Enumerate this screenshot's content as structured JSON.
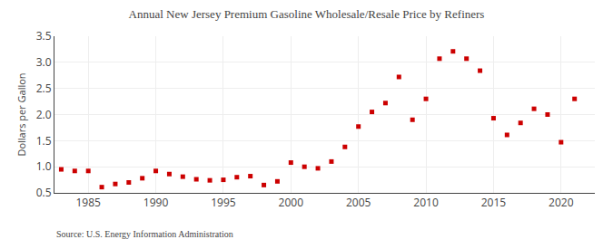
{
  "chart_data": {
    "type": "scatter",
    "title": "Annual New Jersey Premium Gasoline Wholesale/Resale Price by Refiners",
    "ylabel": "Dollars per Gallon",
    "annotations": [
      "Source: U.S. Energy Information Administration"
    ],
    "x": [
      1983,
      1984,
      1985,
      1986,
      1987,
      1988,
      1989,
      1990,
      1991,
      1992,
      1993,
      1994,
      1995,
      1996,
      1997,
      1998,
      1999,
      2000,
      2001,
      2002,
      2003,
      2004,
      2005,
      2006,
      2007,
      2008,
      2009,
      2010,
      2011,
      2012,
      2013,
      2014,
      2015,
      2016,
      2017,
      2018,
      2019,
      2020,
      2021
    ],
    "values": [
      0.95,
      0.92,
      0.92,
      0.61,
      0.67,
      0.7,
      0.78,
      0.92,
      0.86,
      0.81,
      0.76,
      0.74,
      0.75,
      0.8,
      0.82,
      0.65,
      0.72,
      1.08,
      1.0,
      0.97,
      1.1,
      1.38,
      1.77,
      2.05,
      2.22,
      2.72,
      1.9,
      2.3,
      3.07,
      3.21,
      3.07,
      2.84,
      1.93,
      1.61,
      1.84,
      2.11,
      2.0,
      1.47,
      2.3
    ],
    "color": "#cc0000",
    "marker": "square",
    "xlim": [
      1982.5,
      2022.5
    ],
    "ylim": [
      0.5,
      3.5
    ],
    "xticks": [
      1985,
      1990,
      1995,
      2000,
      2005,
      2010,
      2015,
      2020
    ],
    "yticks": [
      0.5,
      {
        "value": 1.0,
        "label": "1.0"
      },
      1.5,
      {
        "value": 2.0,
        "label": "2.0"
      },
      2.5,
      {
        "value": 3.0,
        "label": "3.0"
      },
      3.5
    ],
    "grid": true
  }
}
